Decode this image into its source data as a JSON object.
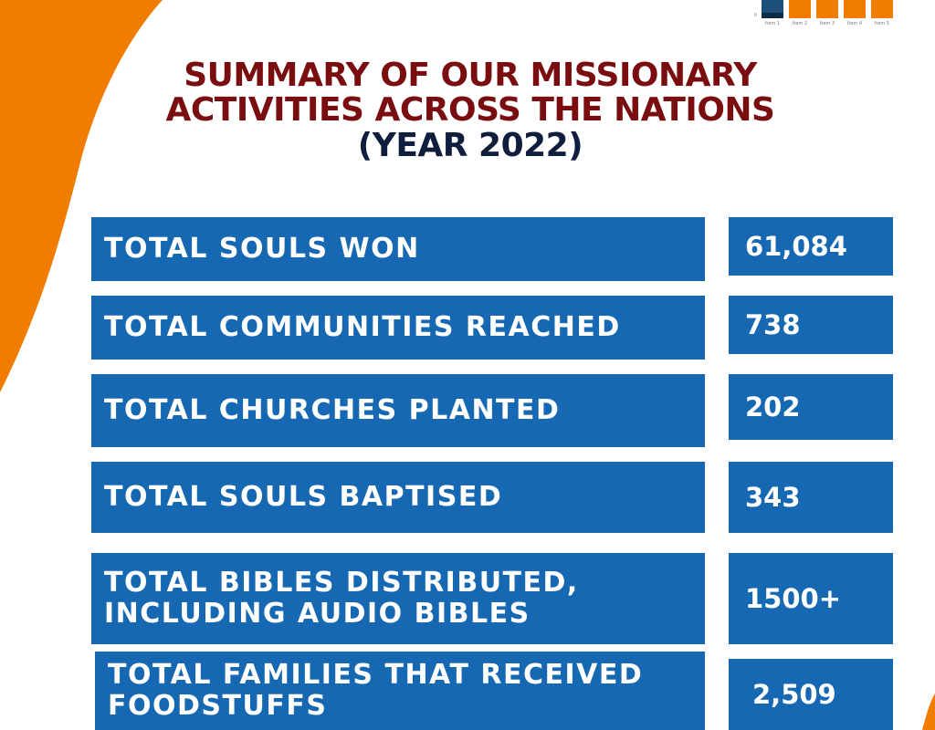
{
  "title": {
    "line1": "SUMMARY OF OUR MISSIONARY",
    "line2": "ACTIVITIES ACROSS THE NATIONS",
    "line3": "(YEAR 2022)"
  },
  "mini_chart": {
    "axis_zero": "0",
    "labels": [
      "Item 1",
      "Item 2",
      "Item 3",
      "Item 4",
      "Item 5"
    ]
  },
  "stats": [
    {
      "label": "TOTAL SOULS WON",
      "value": "61,084"
    },
    {
      "label": "TOTAL COMMUNITIES REACHED",
      "value": "738"
    },
    {
      "label": "TOTAL CHURCHES PLANTED",
      "value": "202"
    },
    {
      "label": "TOTAL SOULS BAPTISED",
      "value": "343"
    },
    {
      "label_line1": "TOTAL BIBLES DISTRIBUTED,",
      "label_line2": "INCLUDING AUDIO BIBLES",
      "value": "1500+"
    },
    {
      "label_line1": "TOTAL FAMILIES THAT RECEIVED",
      "label_line2": "FOODSTUFFS",
      "value": "2,509"
    }
  ],
  "colors": {
    "orange": "#f07c00",
    "box_blue": "#1668b3",
    "title_maroon": "#7a0d10",
    "title_navy": "#0e1e3c"
  }
}
